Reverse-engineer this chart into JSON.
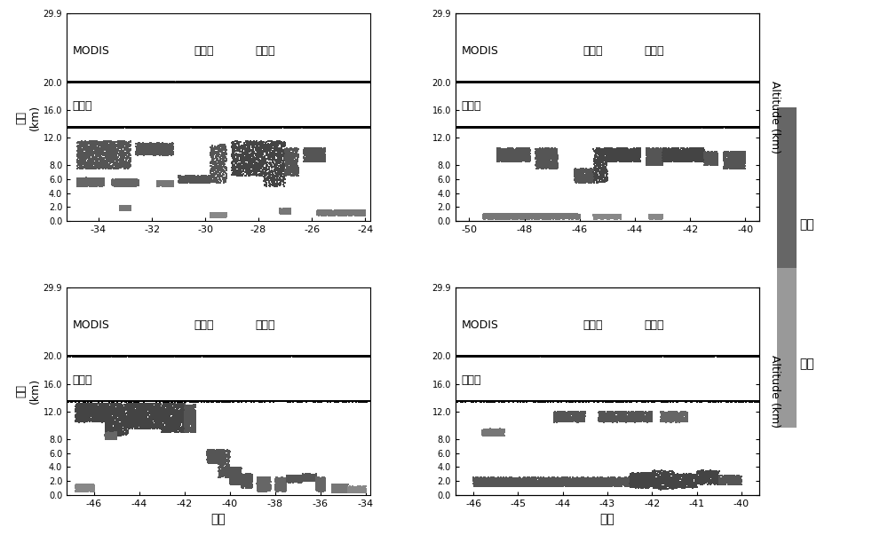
{
  "panels": [
    {
      "xlim": [
        -35.2,
        -23.8
      ],
      "xticks": [
        -34,
        -32,
        -30,
        -28,
        -26,
        -24
      ],
      "xticklabels": [
        "-34",
        "-32",
        "-30",
        "-28",
        "-26",
        "-24"
      ],
      "ylabel_left": "高度\n(km)",
      "ylabel_right": null,
      "show_xlabel": false,
      "row": 0,
      "col": 0
    },
    {
      "xlim": [
        -50.5,
        -39.5
      ],
      "xticks": [
        -50,
        -48,
        -46,
        -44,
        -42,
        -40
      ],
      "xticklabels": [
        "-50",
        "-48",
        "-46",
        "-44",
        "-42",
        "-40"
      ],
      "ylabel_left": null,
      "ylabel_right": "Altitude (km)",
      "show_xlabel": false,
      "row": 0,
      "col": 1
    },
    {
      "xlim": [
        -47.2,
        -33.8
      ],
      "xticks": [
        -46,
        -44,
        -42,
        -40,
        -38,
        -36,
        -34
      ],
      "xticklabels": [
        "-46",
        "-44",
        "-42",
        "-40",
        "-38",
        "-36",
        "-34"
      ],
      "ylabel_left": "高度\n(km)",
      "ylabel_right": null,
      "show_xlabel": true,
      "row": 1,
      "col": 0
    },
    {
      "xlim": [
        -46.4,
        -39.6
      ],
      "xticks": [
        -46,
        -45,
        -44,
        -43,
        -42,
        -41,
        -40
      ],
      "xticklabels": [
        "-46",
        "-45",
        "-44",
        "-43",
        "-42",
        "-41",
        "-40"
      ],
      "ylabel_left": null,
      "ylabel_right": "Altitude (km)",
      "show_xlabel": true,
      "row": 1,
      "col": 1
    }
  ],
  "ylim": [
    0.0,
    29.9
  ],
  "yticks": [
    0.0,
    2.0,
    4.0,
    6.0,
    8.0,
    12.0,
    16.0,
    20.0,
    29.9
  ],
  "yticklabels": [
    "0.0",
    "2.0",
    "4.0",
    "6.0",
    "8.0",
    "12.0",
    "16.0",
    "20.0",
    "29.9"
  ],
  "modis_y": 20.0,
  "suanfa_y": 13.5,
  "label_modis": "MODIS",
  "label_single": "单层云",
  "label_multi": "多层云",
  "label_suanfa": "本算法",
  "label_shuiyun": "水云",
  "label_bingyun": "冰云",
  "label_weidu": "纬度",
  "color_dark": "#4a4a4a",
  "color_mid": "#6a6a6a",
  "color_light": "#909090",
  "color_black": "#000000",
  "color_bg": "#ffffff",
  "cbar_top_color": "#666666",
  "cbar_bot_color": "#999999"
}
